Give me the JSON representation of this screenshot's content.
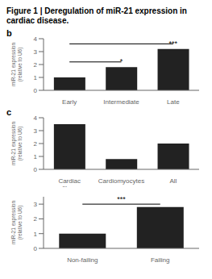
{
  "title": "Figure 1 | Deregulation of miR-21 expression in cardiac disease.",
  "chart_data": [
    {
      "type": "bar",
      "title": "b",
      "categories": [
        "Early",
        "Intermediate",
        "Late"
      ],
      "values": [
        1.0,
        1.8,
        3.2
      ],
      "colors": [
        "#222222",
        "#222222",
        "#222222"
      ],
      "ylabel": "miR-21 expression\n(relative to U6)",
      "ylim": [
        0,
        4
      ],
      "yticks": [
        0,
        1,
        2,
        3,
        4
      ],
      "annotations": [
        {
          "text": "*",
          "from": "Intermediate",
          "to": "Intermediate",
          "y": 2.0
        },
        {
          "text": "***",
          "from": "Late",
          "to": "Late",
          "y": 3.4
        }
      ],
      "brackets": [
        {
          "from": "Early",
          "to": "Late",
          "y": 3.6
        },
        {
          "from": "Early",
          "to": "Intermediate",
          "y": 2.2
        }
      ]
    },
    {
      "type": "bar",
      "title": "c",
      "categories": [
        "Cardiac\nfibro.",
        "Cardiomyocytes",
        "All"
      ],
      "values": [
        3.5,
        0.8,
        2.0
      ],
      "colors": [
        "#222222",
        "#222222",
        "#222222"
      ],
      "ylabel": "miR-21 expression\n(relative to U6)",
      "ylim": [
        0,
        4
      ],
      "yticks": [
        0,
        1,
        2,
        3,
        4
      ]
    },
    {
      "type": "bar",
      "categories": [
        "Non-failing",
        "Failing"
      ],
      "values": [
        1.0,
        2.8
      ],
      "colors": [
        "#222222",
        "#222222"
      ],
      "ylabel": "miR-21 expression\n(relative to U6)",
      "ylim": [
        0,
        3.5
      ],
      "yticks": [
        0,
        1,
        2,
        3
      ],
      "annotations": [
        {
          "text": "***",
          "from": "Non-failing",
          "to": "Failing",
          "y": 3.1
        }
      ],
      "brackets": [
        {
          "from": "Non-failing",
          "to": "Failing",
          "y": 3.0
        }
      ]
    }
  ]
}
